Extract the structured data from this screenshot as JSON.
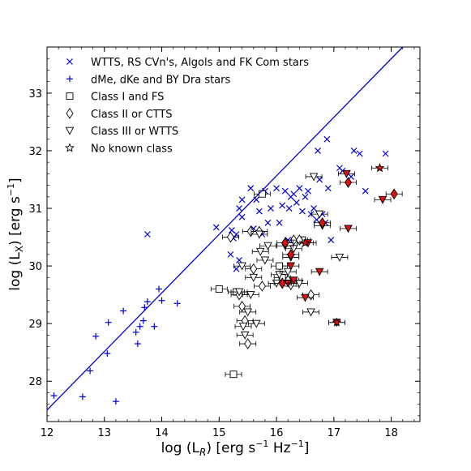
{
  "chart_data": {
    "type": "scatter",
    "x_label_main": "log (L",
    "x_label_sub": "R",
    "x_label_units": ") [erg s",
    "x_label_exp": "−1",
    "x_label_tail": " Hz",
    "x_label_exp2": "−1",
    "x_label_end": "]",
    "y_label_main": "log (L",
    "y_label_sub": "X",
    "y_label_units": ") [erg s",
    "y_label_exp": "−1",
    "y_label_end": "]",
    "xlim": [
      12,
      18.5
    ],
    "ylim": [
      27.3,
      33.8
    ],
    "x_ticks": [
      "12",
      "13",
      "14",
      "15",
      "16",
      "17",
      "18"
    ],
    "y_ticks": [
      "28",
      "29",
      "30",
      "31",
      "32",
      "33"
    ],
    "legend_position": "top-left",
    "colors": {
      "blue": "#0000cc",
      "red": "#dd1111",
      "black": "#000000"
    },
    "reference_line": {
      "from": [
        12,
        27.5
      ],
      "to": [
        18.2,
        33.8
      ]
    },
    "series": [
      {
        "name": "WTTS, RS CVn's, Algols and FK Com stars",
        "marker": "x",
        "points": [
          [
            13.75,
            30.55
          ],
          [
            14.95,
            30.67
          ],
          [
            15.22,
            30.62
          ],
          [
            15.25,
            30.48
          ],
          [
            15.3,
            30.55
          ],
          [
            15.2,
            30.2
          ],
          [
            15.3,
            29.95
          ],
          [
            15.35,
            30.1
          ],
          [
            15.4,
            30.85
          ],
          [
            15.4,
            31.15
          ],
          [
            15.35,
            31.0
          ],
          [
            15.55,
            31.35
          ],
          [
            15.6,
            30.65
          ],
          [
            15.65,
            31.15
          ],
          [
            15.7,
            30.95
          ],
          [
            15.75,
            30.55
          ],
          [
            15.8,
            31.3
          ],
          [
            15.85,
            30.75
          ],
          [
            15.9,
            31.0
          ],
          [
            16.0,
            31.35
          ],
          [
            16.05,
            30.75
          ],
          [
            16.1,
            31.05
          ],
          [
            16.15,
            31.3
          ],
          [
            16.2,
            30.45
          ],
          [
            16.22,
            31.0
          ],
          [
            16.25,
            31.2
          ],
          [
            16.3,
            31.25
          ],
          [
            16.35,
            31.1
          ],
          [
            16.4,
            31.35
          ],
          [
            16.45,
            30.95
          ],
          [
            16.5,
            31.2
          ],
          [
            16.55,
            31.3
          ],
          [
            16.6,
            30.9
          ],
          [
            16.65,
            31.0
          ],
          [
            16.7,
            30.8
          ],
          [
            16.72,
            32.0
          ],
          [
            16.75,
            31.5
          ],
          [
            16.8,
            30.9
          ],
          [
            16.85,
            30.75
          ],
          [
            16.88,
            32.2
          ],
          [
            16.9,
            31.35
          ],
          [
            17.1,
            31.7
          ],
          [
            17.15,
            31.65
          ],
          [
            17.3,
            31.55
          ],
          [
            17.35,
            32.0
          ],
          [
            17.45,
            31.95
          ],
          [
            17.55,
            31.3
          ],
          [
            17.9,
            31.95
          ],
          [
            16.95,
            30.45
          ]
        ]
      },
      {
        "name": "dMe, dKe and BY Dra stars",
        "marker": "+",
        "points": [
          [
            12.12,
            27.75
          ],
          [
            12.62,
            27.73
          ],
          [
            12.75,
            28.18
          ],
          [
            12.85,
            28.78
          ],
          [
            13.05,
            28.48
          ],
          [
            13.07,
            29.02
          ],
          [
            13.2,
            27.65
          ],
          [
            13.33,
            29.22
          ],
          [
            13.55,
            28.85
          ],
          [
            13.58,
            28.65
          ],
          [
            13.62,
            28.95
          ],
          [
            13.68,
            29.05
          ],
          [
            13.7,
            29.28
          ],
          [
            13.75,
            29.38
          ],
          [
            13.87,
            28.95
          ],
          [
            13.95,
            29.6
          ],
          [
            14.0,
            29.4
          ],
          [
            14.27,
            29.35
          ]
        ]
      },
      {
        "name": "Class I and FS",
        "marker": "square",
        "points": [
          [
            15.0,
            29.6
          ],
          [
            15.25,
            28.12
          ],
          [
            15.3,
            29.55
          ],
          [
            15.75,
            31.25
          ],
          [
            16.05,
            30.0
          ],
          [
            16.1,
            29.8
          ],
          [
            16.25,
            29.75
          ],
          [
            16.45,
            30.45
          ]
        ]
      },
      {
        "name": "Class II or CTTS",
        "marker": "diamond",
        "points": [
          [
            15.2,
            30.5
          ],
          [
            15.35,
            29.5
          ],
          [
            15.4,
            29.3
          ],
          [
            15.45,
            29.05
          ],
          [
            15.5,
            28.65
          ],
          [
            15.55,
            30.6
          ],
          [
            15.7,
            30.6
          ],
          [
            15.75,
            29.65
          ],
          [
            15.6,
            29.95
          ],
          [
            16.2,
            29.75
          ],
          [
            16.3,
            30.45
          ],
          [
            16.4,
            30.45
          ],
          [
            16.6,
            29.5
          ]
        ]
      },
      {
        "name": "Class III or WTTS",
        "marker": "triangle-down",
        "points": [
          [
            15.35,
            29.55
          ],
          [
            15.4,
            30.0
          ],
          [
            15.42,
            28.95
          ],
          [
            15.45,
            28.8
          ],
          [
            15.5,
            29.2
          ],
          [
            15.55,
            29.5
          ],
          [
            15.6,
            29.8
          ],
          [
            15.65,
            29.0
          ],
          [
            15.7,
            30.55
          ],
          [
            15.72,
            30.25
          ],
          [
            15.8,
            30.1
          ],
          [
            15.85,
            30.35
          ],
          [
            16.0,
            29.7
          ],
          [
            16.05,
            29.85
          ],
          [
            16.2,
            29.9
          ],
          [
            16.25,
            29.65
          ],
          [
            16.3,
            30.3
          ],
          [
            16.4,
            29.7
          ],
          [
            16.6,
            29.2
          ],
          [
            16.65,
            31.55
          ],
          [
            17.1,
            30.15
          ],
          [
            16.75,
            30.9
          ]
        ]
      },
      {
        "name": "No known class",
        "marker": "star",
        "points": []
      },
      {
        "name": "",
        "marker": "triangle-down-filled",
        "points": [
          [
            16.15,
            30.35
          ],
          [
            16.2,
            29.7
          ],
          [
            16.25,
            30.0
          ],
          [
            16.3,
            29.75
          ],
          [
            16.5,
            29.45
          ],
          [
            16.55,
            30.4
          ],
          [
            16.75,
            29.9
          ],
          [
            16.8,
            30.7
          ],
          [
            17.25,
            30.65
          ],
          [
            17.22,
            31.6
          ],
          [
            17.85,
            31.15
          ],
          [
            17.05,
            29.02
          ],
          [
            16.25,
            30.15
          ]
        ]
      },
      {
        "name": "",
        "marker": "diamond-filled",
        "points": [
          [
            16.1,
            29.7
          ],
          [
            16.15,
            30.4
          ],
          [
            16.25,
            30.2
          ],
          [
            16.8,
            30.75
          ],
          [
            17.25,
            31.45
          ],
          [
            18.05,
            31.25
          ]
        ]
      },
      {
        "name": "",
        "marker": "star-filled",
        "points": [
          [
            17.8,
            31.7
          ],
          [
            17.05,
            29.02
          ],
          [
            16.5,
            30.4
          ]
        ]
      }
    ]
  }
}
